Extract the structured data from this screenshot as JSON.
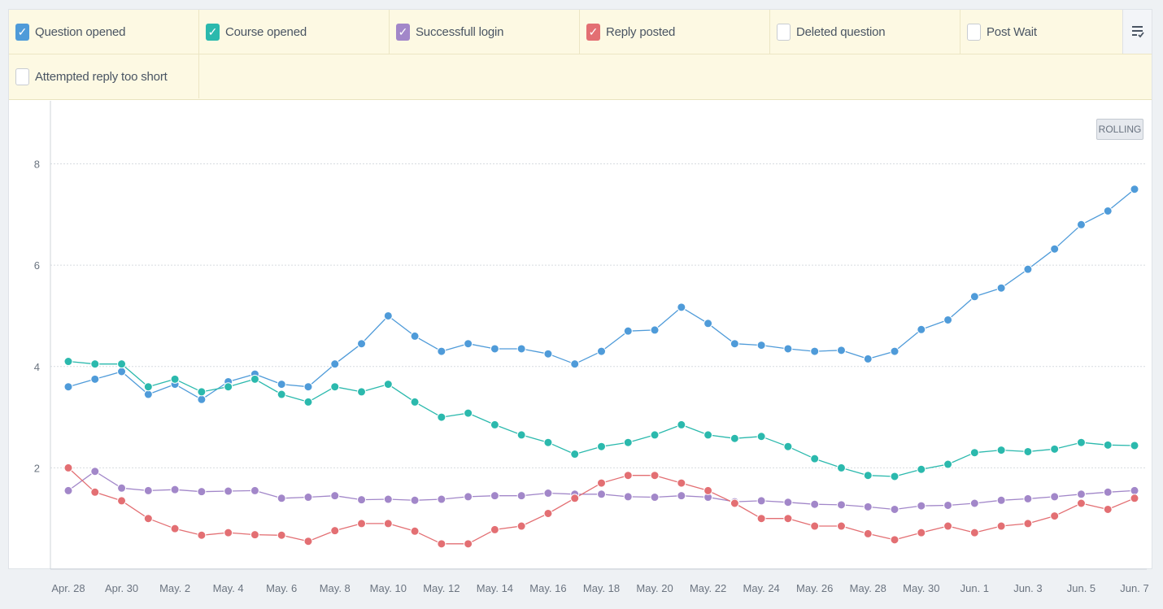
{
  "legend": {
    "items": [
      {
        "label": "Question opened",
        "checked": true,
        "color": "#4f9bd9"
      },
      {
        "label": "Course opened",
        "checked": true,
        "color": "#2bb9ad"
      },
      {
        "label": "Successfull login",
        "checked": true,
        "color": "#a287c9"
      },
      {
        "label": "Reply posted",
        "checked": true,
        "color": "#e36f73"
      },
      {
        "label": "Deleted question",
        "checked": false,
        "color": ""
      },
      {
        "label": "Post Wait",
        "checked": false,
        "color": ""
      },
      {
        "label": "Attempted reply too short",
        "checked": false,
        "color": ""
      }
    ],
    "menu_icon": "list-check-icon"
  },
  "rolling_label": "ROLLING",
  "chart_data": {
    "type": "line",
    "x": [
      "Apr. 28",
      "Apr. 29",
      "Apr. 30",
      "May. 1",
      "May. 2",
      "May. 3",
      "May. 4",
      "May. 5",
      "May. 6",
      "May. 7",
      "May. 8",
      "May. 9",
      "May. 10",
      "May. 11",
      "May. 12",
      "May. 13",
      "May. 14",
      "May. 15",
      "May. 16",
      "May. 17",
      "May. 18",
      "May. 19",
      "May. 20",
      "May. 21",
      "May. 22",
      "May. 23",
      "May. 24",
      "May. 25",
      "May. 26",
      "May. 27",
      "May. 28",
      "May. 29",
      "May. 30",
      "May. 31",
      "Jun. 1",
      "Jun. 2",
      "Jun. 3",
      "Jun. 4",
      "Jun. 5",
      "Jun. 6",
      "Jun. 7"
    ],
    "x_tick_labels": [
      "Apr. 28",
      "Apr. 30",
      "May. 2",
      "May. 4",
      "May. 6",
      "May. 8",
      "May. 10",
      "May. 12",
      "May. 14",
      "May. 16",
      "May. 18",
      "May. 20",
      "May. 22",
      "May. 24",
      "May. 26",
      "May. 28",
      "May. 30",
      "Jun. 1",
      "Jun. 3",
      "Jun. 5",
      "Jun. 7"
    ],
    "y_ticks": [
      2,
      4,
      6,
      8
    ],
    "ylim": [
      0,
      9.1
    ],
    "grid": true,
    "series": [
      {
        "name": "Question opened",
        "color": "#4f9bd9",
        "values": [
          3.6,
          3.75,
          3.9,
          3.45,
          3.65,
          3.35,
          3.7,
          3.85,
          3.65,
          3.6,
          4.05,
          4.45,
          5.0,
          4.6,
          4.3,
          4.45,
          4.35,
          4.35,
          4.25,
          4.05,
          4.3,
          4.7,
          4.72,
          5.17,
          4.85,
          4.45,
          4.42,
          4.35,
          4.3,
          4.32,
          4.15,
          4.3,
          4.73,
          4.92,
          5.38,
          5.55,
          5.92,
          6.32,
          6.8,
          7.07,
          7.5
        ]
      },
      {
        "name": "Course opened",
        "color": "#2bb9ad",
        "values": [
          4.1,
          4.05,
          4.05,
          3.6,
          3.75,
          3.5,
          3.6,
          3.75,
          3.45,
          3.3,
          3.6,
          3.5,
          3.65,
          3.3,
          3.0,
          3.08,
          2.85,
          2.65,
          2.5,
          2.27,
          2.42,
          2.5,
          2.65,
          2.85,
          2.65,
          2.58,
          2.62,
          2.42,
          2.18,
          2.0,
          1.85,
          1.83,
          1.97,
          2.07,
          2.3,
          2.35,
          2.32,
          2.37,
          2.5,
          2.45,
          2.44
        ]
      },
      {
        "name": "Successfull login",
        "color": "#a287c9",
        "values": [
          1.55,
          1.93,
          1.6,
          1.55,
          1.57,
          1.53,
          1.54,
          1.55,
          1.4,
          1.42,
          1.45,
          1.37,
          1.38,
          1.36,
          1.38,
          1.43,
          1.45,
          1.45,
          1.5,
          1.48,
          1.48,
          1.43,
          1.42,
          1.45,
          1.42,
          1.33,
          1.35,
          1.32,
          1.28,
          1.27,
          1.23,
          1.18,
          1.25,
          1.26,
          1.3,
          1.36,
          1.39,
          1.43,
          1.48,
          1.52,
          1.55
        ]
      },
      {
        "name": "Reply posted",
        "color": "#e36f73",
        "values": [
          2.0,
          1.52,
          1.35,
          1.0,
          0.8,
          0.67,
          0.72,
          0.68,
          0.67,
          0.55,
          0.76,
          0.9,
          0.9,
          0.75,
          0.5,
          0.5,
          0.78,
          0.85,
          1.1,
          1.4,
          1.7,
          1.85,
          1.85,
          1.7,
          1.55,
          1.3,
          1.0,
          1.0,
          0.85,
          0.85,
          0.7,
          0.58,
          0.72,
          0.85,
          0.72,
          0.85,
          0.9,
          1.05,
          1.3,
          1.18,
          1.4
        ]
      }
    ]
  }
}
